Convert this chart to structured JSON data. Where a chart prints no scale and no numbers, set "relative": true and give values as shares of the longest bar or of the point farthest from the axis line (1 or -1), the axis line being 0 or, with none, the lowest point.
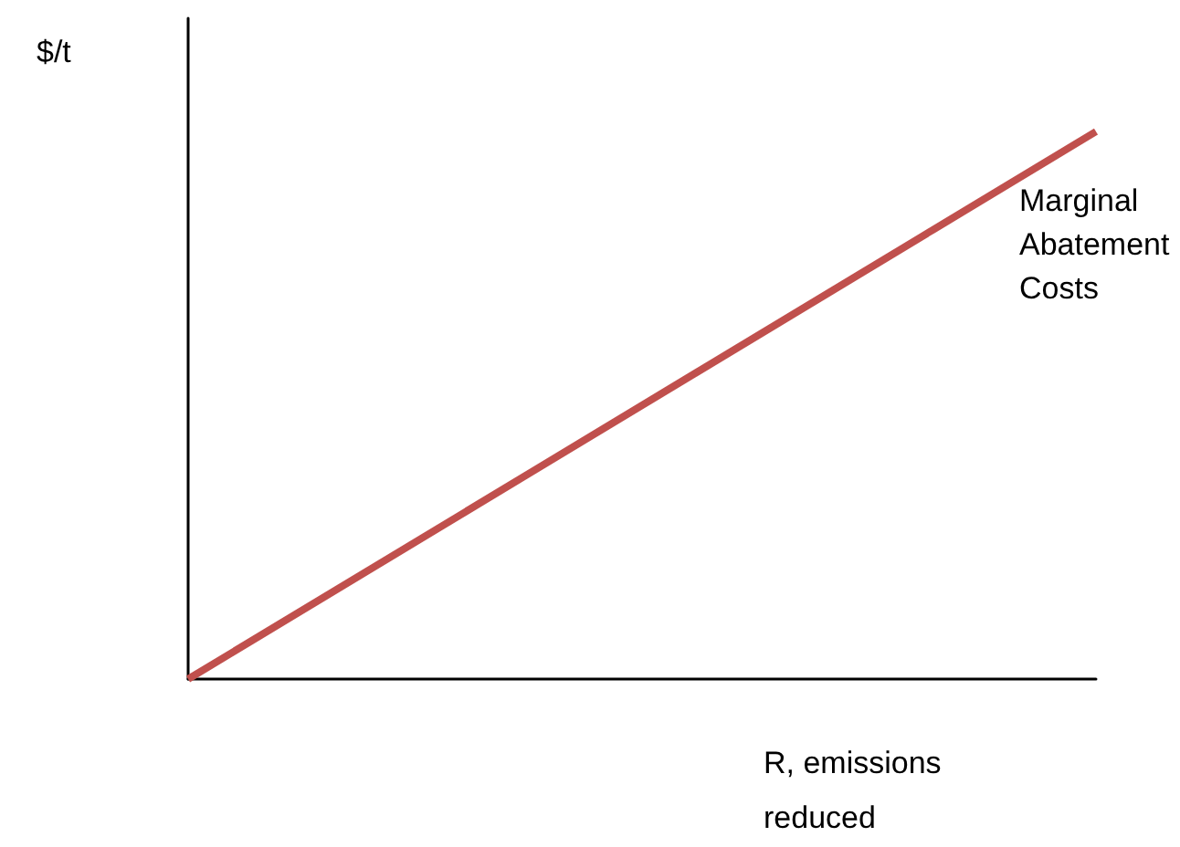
{
  "chart_data": {
    "type": "line",
    "relative": true,
    "ylabel": "$/t",
    "xlabel": "R, emissions reduced",
    "categories": [
      null,
      null
    ],
    "series": [
      {
        "name": "Marginal Abatement Costs",
        "color": "#c0504d",
        "values": [
          0,
          1
        ]
      }
    ],
    "marker": "none",
    "line_style": "solid",
    "grid": false,
    "legend": false
  }
}
